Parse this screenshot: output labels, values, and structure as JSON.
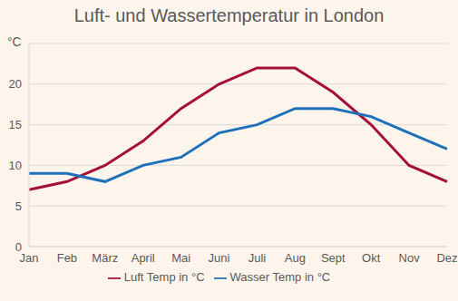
{
  "chart_data": {
    "type": "line",
    "title": "Luft- und Wassertemperatur in London",
    "y_label": "°C",
    "categories": [
      "Jan",
      "Feb",
      "März",
      "April",
      "Mai",
      "Juni",
      "Juli",
      "Aug",
      "Sept",
      "Okt",
      "Nov",
      "Dez"
    ],
    "series": [
      {
        "name": "Luft Temp in °C",
        "color": "#a50f3c",
        "values": [
          7,
          8,
          10,
          13,
          17,
          20,
          22,
          22,
          19,
          15,
          10,
          8
        ]
      },
      {
        "name": "Wasser Temp in °C",
        "color": "#1f70ba",
        "values": [
          9,
          9,
          8,
          10,
          11,
          14,
          15,
          17,
          17,
          16,
          14,
          12
        ]
      }
    ],
    "ylim": [
      0,
      25
    ],
    "yticks": [
      0,
      5,
      10,
      15,
      20
    ],
    "grid": true,
    "legend": "bottom"
  }
}
